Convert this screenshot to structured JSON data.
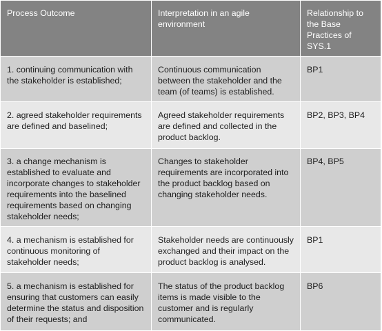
{
  "table": {
    "headers": [
      "Process Outcome",
      "Interpretation in an agile environment",
      "Relationship to the Base Practices of SYS.1"
    ],
    "rows": [
      {
        "outcome": "1. continuing communication with the stakeholder is established;",
        "interpretation": "Continuous communication between the stakeholder and the team (of teams) is established.",
        "base_practices": "BP1"
      },
      {
        "outcome": "2. agreed stakeholder requirements are defined and baselined;",
        "interpretation": "Agreed stakeholder requirements are defined and collected in the product backlog.",
        "base_practices": "BP2, BP3, BP4"
      },
      {
        "outcome": "3. a change mechanism is established to evaluate and incorporate changes to stakeholder requirements into the baselined requirements based on changing stakeholder needs;",
        "interpretation": "Changes to stakeholder requirements are incorporated into the product backlog based on changing stakeholder needs.",
        "base_practices": "BP4, BP5"
      },
      {
        "outcome": "4. a mechanism is established for continuous monitoring of stakeholder needs;",
        "interpretation": "Stakeholder needs are continuously exchanged and their impact on the product backlog is analysed.",
        "base_practices": "BP1"
      },
      {
        "outcome": "5. a mechanism is established for ensuring that customers can easily determine the status and disposition of their requests; and",
        "interpretation": "The status of the product backlog items is made visible to the customer and is regularly communicated.",
        "base_practices": "BP6"
      }
    ]
  }
}
